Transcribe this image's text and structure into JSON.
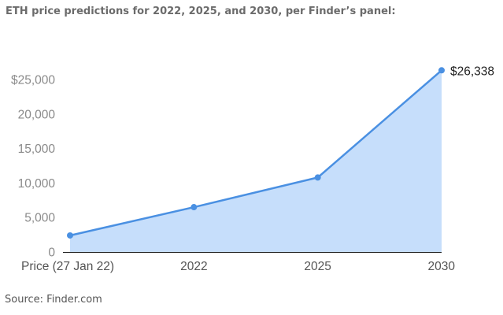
{
  "header": {
    "title": "ETH price predictions for 2022, 2025, and 2030, per Finder’s panel:"
  },
  "footer": {
    "source": "Source: Finder.com"
  },
  "chart_data": {
    "type": "area",
    "title": "ETH price predictions for 2022, 2025, and 2030, per Finder’s panel:",
    "xlabel": "",
    "ylabel": "",
    "categories": [
      "Price (27 Jan 22)",
      "2022",
      "2025",
      "2030"
    ],
    "series": [
      {
        "values": [
          2400,
          6500,
          10800,
          26338
        ],
        "color": "#4a90e2",
        "fill": "#c6defb"
      }
    ],
    "ylim": [
      0,
      25000
    ],
    "yticks": [
      0,
      5000,
      10000,
      15000,
      20000,
      25000
    ],
    "ytick_labels": [
      "0",
      "5,000",
      "10,000",
      "15,000",
      "20,000",
      "$25,000"
    ],
    "data_labels": [
      {
        "index": 3,
        "text": "$26,338"
      }
    ],
    "grid": false,
    "legend": "none",
    "axis_color": "#222222"
  }
}
